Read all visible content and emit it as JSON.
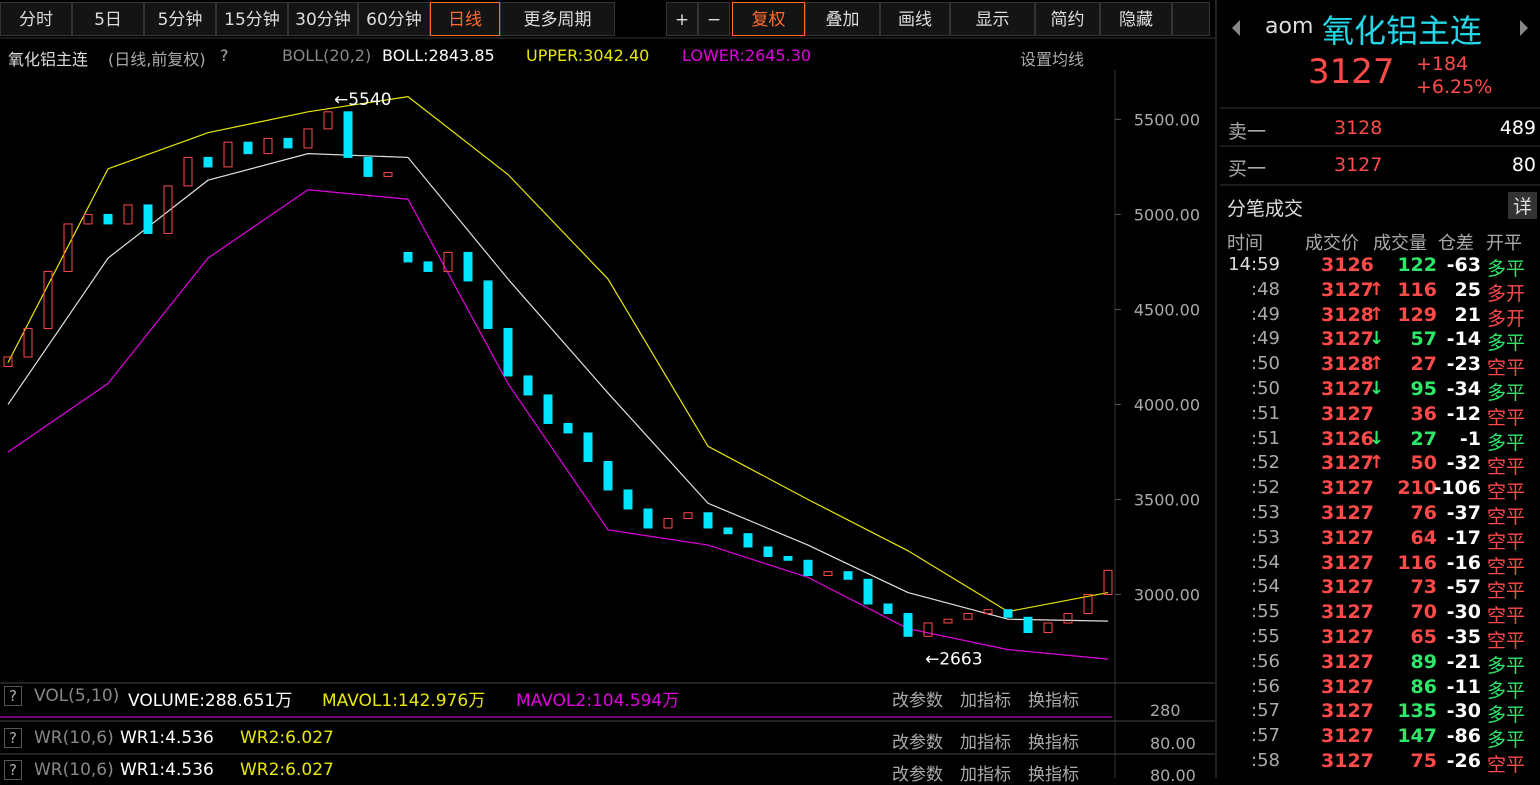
{
  "toolbar": {
    "left": [
      "分时",
      "5日",
      "5分钟",
      "15分钟",
      "30分钟",
      "60分钟",
      "日线",
      "更多周期"
    ],
    "right": [
      "+",
      "−",
      "复权",
      "叠加",
      "画线",
      "显示",
      "简约",
      "隐藏"
    ]
  },
  "info_bar": {
    "name": "氧化铝主连",
    "mode": "(日线,前复权)",
    "help": "?",
    "indicator": "BOLL(20,2)",
    "boll": "BOLL:2843.85",
    "upper": "UPPER:3042.40",
    "lower": "LOWER:2645.30",
    "settings": "设置均线"
  },
  "chart_data": {
    "type": "candlestick",
    "ylim": [
      2550,
      5760
    ],
    "yticks": [
      {
        "value": 3000,
        "label": "3000.00"
      },
      {
        "value": 3500,
        "label": "3500.00"
      },
      {
        "value": 4000,
        "label": "4000.00"
      },
      {
        "value": 4500,
        "label": "4500.00"
      },
      {
        "value": 5000,
        "label": "5000.00"
      },
      {
        "value": 5500,
        "label": "5500.00"
      }
    ],
    "open": [
      4200,
      4250,
      4400,
      4700,
      4950,
      5000,
      4950,
      5050,
      4900,
      5150,
      5300,
      5250,
      5380,
      5320,
      5400,
      5350,
      5450,
      5540,
      5300,
      5200,
      4800,
      4750,
      4700,
      4800,
      4650,
      4400,
      4150,
      4050,
      3900,
      3850,
      3700,
      3550,
      3450,
      3350,
      3400,
      3430,
      3350,
      3320,
      3250,
      3200,
      3180,
      3100,
      3120,
      3080,
      2950,
      2900,
      2780,
      2850,
      2870,
      2900,
      2920,
      2880,
      2800,
      2850,
      2900,
      3000
    ],
    "close": [
      4250,
      4400,
      4700,
      4950,
      5000,
      4950,
      5050,
      4900,
      5150,
      5300,
      5250,
      5380,
      5320,
      5400,
      5350,
      5450,
      5540,
      5300,
      5200,
      5220,
      4750,
      4700,
      4800,
      4650,
      4400,
      4150,
      4050,
      3900,
      3850,
      3700,
      3550,
      3450,
      3350,
      3400,
      3430,
      3350,
      3320,
      3250,
      3200,
      3180,
      3100,
      3120,
      3080,
      2950,
      2900,
      2780,
      2850,
      2870,
      2900,
      2920,
      2880,
      2800,
      2850,
      2900,
      3000,
      3127
    ],
    "boll_x": [
      0,
      5,
      10,
      15,
      20,
      25,
      30,
      35,
      40,
      45,
      50,
      55
    ],
    "series": [
      {
        "name": "UPPER",
        "color": "#e8e800",
        "values": [
          4220,
          5240,
          5430,
          5540,
          5620,
          5210,
          4660,
          3780,
          3500,
          3230,
          2910,
          3010
        ]
      },
      {
        "name": "BOLL",
        "color": "#e0e0e0",
        "values": [
          4000,
          4770,
          5180,
          5320,
          5300,
          4660,
          4060,
          3480,
          3260,
          3010,
          2870,
          2860
        ]
      },
      {
        "name": "LOWER",
        "color": "#e000e0",
        "values": [
          3750,
          4110,
          4770,
          5130,
          5080,
          4110,
          3340,
          3260,
          3090,
          2820,
          2710,
          2660
        ]
      }
    ],
    "high_label": 5540,
    "low_label": 2663
  },
  "panes": [
    {
      "help": "?",
      "name": "VOL(5,10)",
      "a": "VOLUME:288.651万",
      "b": "MAVOL1:142.976万",
      "c": "MAVOL2:104.594万",
      "axis": "280",
      "btns": [
        "改参数",
        "加指标",
        "换指标"
      ]
    },
    {
      "help": "?",
      "name": "WR(10,6)",
      "a": "WR1:4.536",
      "b": "WR2:6.027",
      "axis": "80.00",
      "btns": [
        "改参数",
        "加指标",
        "换指标"
      ]
    },
    {
      "help": "?",
      "name": "WR(10,6)",
      "a": "WR1:4.536",
      "b": "WR2:6.027",
      "axis": "80.00",
      "btns": [
        "改参数",
        "加指标",
        "换指标"
      ]
    }
  ],
  "quote": {
    "code": "aom",
    "name": "氧化铝主连",
    "price": "3127",
    "change": "+184",
    "pct": "+6.25%",
    "ask_label": "卖一",
    "ask": "3128",
    "ask_vol": "489",
    "bid_label": "买一",
    "bid": "3127",
    "bid_vol": "80"
  },
  "trades": {
    "title": "分笔成交",
    "detail": "详",
    "header": [
      "时间",
      "成交价",
      "成交量",
      "仓差",
      "开平"
    ],
    "rows": [
      [
        "14:59",
        "3126",
        "",
        "122",
        "-63",
        "多平"
      ],
      [
        ":48",
        "3127",
        "↑",
        "116",
        "25",
        "多开"
      ],
      [
        ":49",
        "3128",
        "↑",
        "129",
        "21",
        "多开"
      ],
      [
        ":49",
        "3127",
        "↓",
        "57",
        "-14",
        "多平"
      ],
      [
        ":50",
        "3128",
        "↑",
        "27",
        "-23",
        "空平"
      ],
      [
        ":50",
        "3127",
        "↓",
        "95",
        "-34",
        "多平"
      ],
      [
        ":51",
        "3127",
        "",
        "36",
        "-12",
        "空平"
      ],
      [
        ":51",
        "3126",
        "↓",
        "27",
        "-1",
        "多平"
      ],
      [
        ":52",
        "3127",
        "↑",
        "50",
        "-32",
        "空平"
      ],
      [
        ":52",
        "3127",
        "",
        "210",
        "-106",
        "空平"
      ],
      [
        ":53",
        "3127",
        "",
        "76",
        "-37",
        "空平"
      ],
      [
        ":53",
        "3127",
        "",
        "64",
        "-17",
        "空平"
      ],
      [
        ":54",
        "3127",
        "",
        "116",
        "-16",
        "空平"
      ],
      [
        ":54",
        "3127",
        "",
        "73",
        "-57",
        "空平"
      ],
      [
        ":55",
        "3127",
        "",
        "70",
        "-30",
        "空平"
      ],
      [
        ":55",
        "3127",
        "",
        "65",
        "-35",
        "空平"
      ],
      [
        ":56",
        "3127",
        "",
        "89",
        "-21",
        "多平"
      ],
      [
        ":56",
        "3127",
        "",
        "86",
        "-11",
        "多平"
      ],
      [
        ":57",
        "3127",
        "",
        "135",
        "-30",
        "多平"
      ],
      [
        ":57",
        "3127",
        "",
        "147",
        "-86",
        "多平"
      ],
      [
        ":58",
        "3127",
        "",
        "75",
        "-26",
        "空平"
      ]
    ]
  }
}
